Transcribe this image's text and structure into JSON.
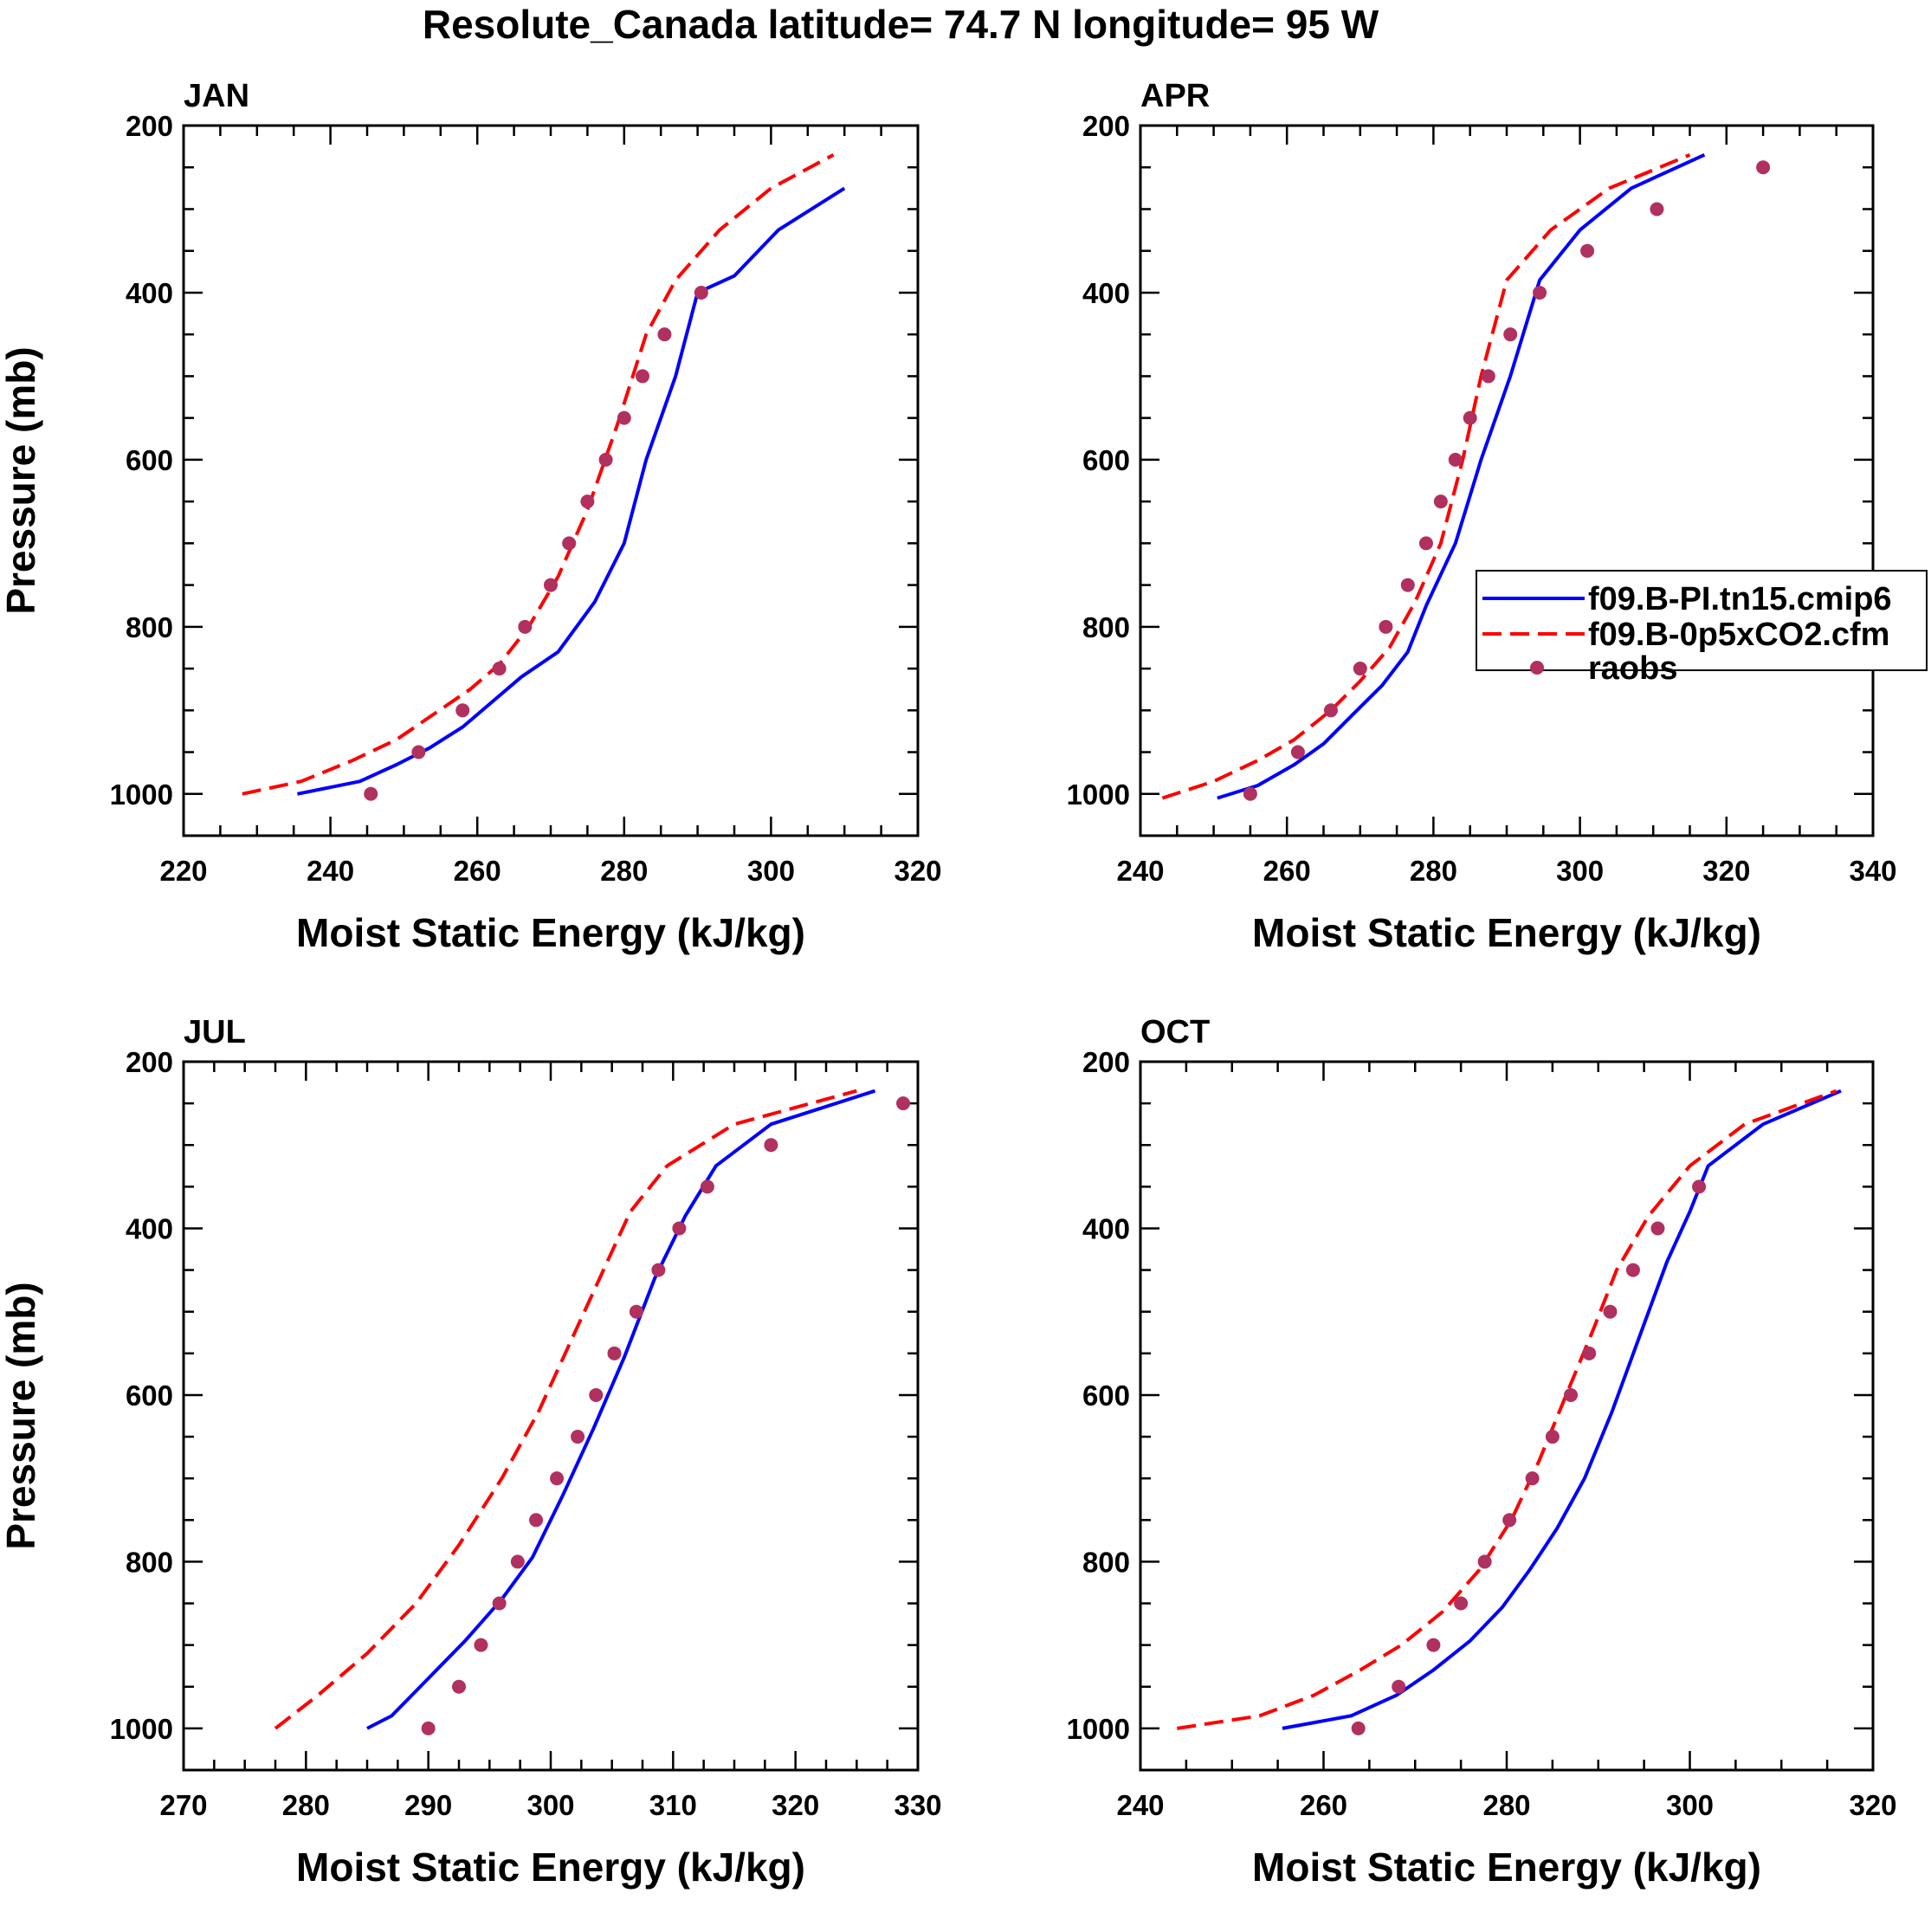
{
  "figure": {
    "title": "Resolute_Canada  latitude= 74.7 N longitude= 95 W"
  },
  "legend": {
    "entries": [
      {
        "label": "f09.B-PI.tn15.cmip6",
        "color": "#0000ff",
        "style": "solid"
      },
      {
        "label": "f09.B-0p5xCO2.cfm",
        "color": "#ff0000",
        "style": "dashed"
      },
      {
        "label": "raobs",
        "color": "#b03060",
        "style": "marker"
      }
    ]
  },
  "chart_data": [
    {
      "type": "line",
      "title": "JAN",
      "xlabel": "Moist Static Energy (kJ/kg)",
      "ylabel": "Pressure (mb)",
      "xlim": [
        220,
        320
      ],
      "ylim": [
        200,
        1050
      ],
      "y_inverted": true,
      "xticks": [
        220,
        240,
        260,
        280,
        300,
        320
      ],
      "yticks": [
        200,
        400,
        600,
        800,
        1000
      ],
      "series": [
        {
          "name": "f09.B-PI.tn15.cmip6",
          "color": "#0000ff",
          "style": "solid",
          "x": [
            235.5,
            244,
            249,
            253.5,
            258,
            262,
            266,
            271,
            276,
            280,
            283,
            287,
            290,
            295,
            301,
            310
          ],
          "y": [
            1000,
            985,
            965,
            945,
            920,
            890,
            860,
            830,
            770,
            700,
            600,
            500,
            400,
            380,
            325,
            275
          ]
        },
        {
          "name": "f09.B-0p5xCO2.cfm",
          "color": "#ff0000",
          "style": "dashed",
          "x": [
            228,
            236,
            243,
            249,
            254,
            259,
            263,
            267,
            271,
            275,
            279,
            283,
            287,
            293,
            300,
            308.5
          ],
          "y": [
            1000,
            985,
            960,
            935,
            905,
            875,
            845,
            800,
            740,
            660,
            560,
            450,
            385,
            325,
            275,
            235
          ]
        },
        {
          "name": "raobs",
          "color": "#b03060",
          "style": "marker",
          "x": [
            245.5,
            252,
            258,
            263,
            266.5,
            270,
            272.5,
            275,
            277.5,
            280,
            282.5,
            285.5,
            290.5
          ],
          "y": [
            1000,
            950,
            900,
            850,
            800,
            750,
            700,
            650,
            600,
            550,
            500,
            450,
            400
          ]
        }
      ]
    },
    {
      "type": "line",
      "title": "APR",
      "xlabel": "Moist Static Energy (kJ/kg)",
      "ylabel": "",
      "xlim": [
        240,
        340
      ],
      "ylim": [
        200,
        1050
      ],
      "y_inverted": true,
      "xticks": [
        240,
        260,
        280,
        300,
        320,
        340
      ],
      "yticks": [
        200,
        400,
        600,
        800,
        1000
      ],
      "series": [
        {
          "name": "f09.B-PI.tn15.cmip6",
          "color": "#0000ff",
          "style": "solid",
          "x": [
            250.5,
            256,
            261,
            265,
            269,
            273,
            276.5,
            279,
            283,
            286.5,
            290.5,
            294.5,
            300,
            307,
            317
          ],
          "y": [
            1005,
            990,
            965,
            940,
            905,
            870,
            830,
            775,
            700,
            600,
            500,
            385,
            325,
            275,
            235
          ]
        },
        {
          "name": "f09.B-0p5xCO2.cfm",
          "color": "#ff0000",
          "style": "dashed",
          "x": [
            243,
            250,
            256,
            261,
            266,
            270,
            274,
            277.5,
            281,
            284,
            286.5,
            290,
            296,
            304,
            315
          ],
          "y": [
            1005,
            985,
            960,
            935,
            900,
            865,
            825,
            770,
            700,
            600,
            500,
            385,
            325,
            275,
            235
          ]
        },
        {
          "name": "raobs",
          "color": "#b03060",
          "style": "marker",
          "x": [
            255,
            261.5,
            266,
            270,
            273.5,
            276.5,
            279,
            281,
            283,
            285,
            287.5,
            290.5,
            294.5,
            301,
            310.5,
            325
          ],
          "y": [
            1000,
            950,
            900,
            850,
            800,
            750,
            700,
            650,
            600,
            550,
            500,
            450,
            400,
            350,
            300,
            250
          ]
        }
      ]
    },
    {
      "type": "line",
      "title": "JUL",
      "xlabel": "Moist Static Energy (kJ/kg)",
      "ylabel": "Pressure (mb)",
      "xlim": [
        270,
        330
      ],
      "ylim": [
        200,
        1050
      ],
      "y_inverted": true,
      "xticks": [
        270,
        280,
        290,
        300,
        310,
        320,
        330
      ],
      "yticks": [
        200,
        400,
        600,
        800,
        1000
      ],
      "series": [
        {
          "name": "f09.B-PI.tn15.cmip6",
          "color": "#0000ff",
          "style": "solid",
          "x": [
            285,
            287,
            290,
            293,
            296,
            298.5,
            301,
            303.5,
            306,
            308.5,
            311,
            313.5,
            318,
            326.5
          ],
          "y": [
            1000,
            985,
            940,
            895,
            845,
            795,
            720,
            640,
            555,
            460,
            385,
            325,
            275,
            235
          ]
        },
        {
          "name": "f09.B-0p5xCO2.cfm",
          "color": "#ff0000",
          "style": "dashed",
          "x": [
            277.5,
            281,
            285,
            289,
            292.5,
            296,
            299,
            301.5,
            304,
            306.5,
            309.5,
            315,
            325
          ],
          "y": [
            1000,
            960,
            910,
            850,
            780,
            700,
            620,
            540,
            460,
            380,
            325,
            275,
            235
          ]
        },
        {
          "name": "raobs",
          "color": "#b03060",
          "style": "marker",
          "x": [
            290,
            292.5,
            294.3,
            295.8,
            297.3,
            298.8,
            300.5,
            302.2,
            303.7,
            305.2,
            307,
            308.8,
            310.5,
            312.8,
            318,
            328.8
          ],
          "y": [
            1000,
            950,
            900,
            850,
            800,
            750,
            700,
            650,
            600,
            550,
            500,
            450,
            400,
            350,
            300,
            250
          ]
        }
      ]
    },
    {
      "type": "line",
      "title": "OCT",
      "xlabel": "Moist Static Energy (kJ/kg)",
      "ylabel": "",
      "xlim": [
        240,
        320
      ],
      "ylim": [
        200,
        1050
      ],
      "y_inverted": true,
      "xticks": [
        240,
        260,
        280,
        300,
        320
      ],
      "yticks": [
        200,
        400,
        600,
        800,
        1000
      ],
      "series": [
        {
          "name": "f09.B-PI.tn15.cmip6",
          "color": "#0000ff",
          "style": "solid",
          "x": [
            255.5,
            263,
            268,
            272,
            276,
            279.5,
            282.5,
            285.5,
            288.5,
            291.5,
            294.5,
            297.5,
            300,
            302,
            308,
            316.5
          ],
          "y": [
            1000,
            985,
            960,
            930,
            895,
            855,
            810,
            760,
            700,
            620,
            530,
            440,
            380,
            325,
            275,
            235
          ]
        },
        {
          "name": "f09.B-0p5xCO2.cfm",
          "color": "#ff0000",
          "style": "dashed",
          "x": [
            244,
            253,
            259,
            264,
            268.5,
            273,
            277,
            280.5,
            283.5,
            286.5,
            289.5,
            292,
            295.5,
            300,
            306,
            316
          ],
          "y": [
            1000,
            985,
            960,
            930,
            900,
            860,
            810,
            750,
            680,
            600,
            520,
            450,
            385,
            325,
            275,
            235
          ]
        },
        {
          "name": "raobs",
          "color": "#b03060",
          "style": "marker",
          "x": [
            263.8,
            268.2,
            272,
            275,
            277.6,
            280.3,
            282.8,
            285,
            287,
            289,
            291.3,
            293.8,
            296.5,
            301
          ],
          "y": [
            1000,
            950,
            900,
            850,
            800,
            750,
            700,
            650,
            600,
            550,
            500,
            450,
            400,
            350
          ]
        }
      ]
    }
  ]
}
